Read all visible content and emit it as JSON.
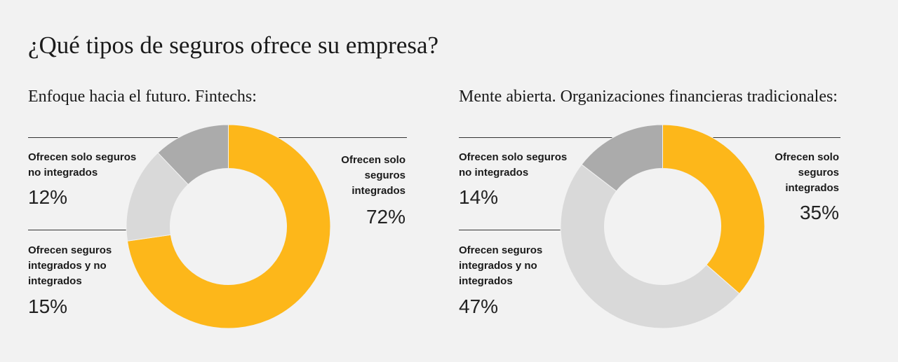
{
  "title": "¿Qué tipos de seguros ofrece su empresa?",
  "colors": {
    "integrated": "#fdb71a",
    "both": "#d9d9d9",
    "non_integrated": "#ababab"
  },
  "chart_data": [
    {
      "type": "pie",
      "subtitle": "Enfoque hacia el futuro. Fintechs:",
      "slices": [
        {
          "key": "integrated",
          "label_lines": [
            "Ofrecen solo",
            "seguros",
            "integrados"
          ],
          "pct_text": "72%",
          "value": 72
        },
        {
          "key": "both",
          "label_lines": [
            "Ofrecen seguros",
            "integrados y no",
            "integrados"
          ],
          "pct_text": "15%",
          "value": 15
        },
        {
          "key": "non_integrated",
          "label_lines": [
            "Ofrecen solo seguros",
            "no integrados"
          ],
          "pct_text": "12%",
          "value": 12
        }
      ]
    },
    {
      "type": "pie",
      "subtitle": "Mente abierta. Organizaciones financieras tradicionales:",
      "slices": [
        {
          "key": "integrated",
          "label_lines": [
            "Ofrecen solo",
            "seguros",
            "integrados"
          ],
          "pct_text": "35%",
          "value": 35
        },
        {
          "key": "both",
          "label_lines": [
            "Ofrecen seguros",
            "integrados y no",
            "integrados"
          ],
          "pct_text": "47%",
          "value": 47
        },
        {
          "key": "non_integrated",
          "label_lines": [
            "Ofrecen solo seguros",
            "no integrados"
          ],
          "pct_text": "14%",
          "value": 14
        }
      ]
    }
  ]
}
